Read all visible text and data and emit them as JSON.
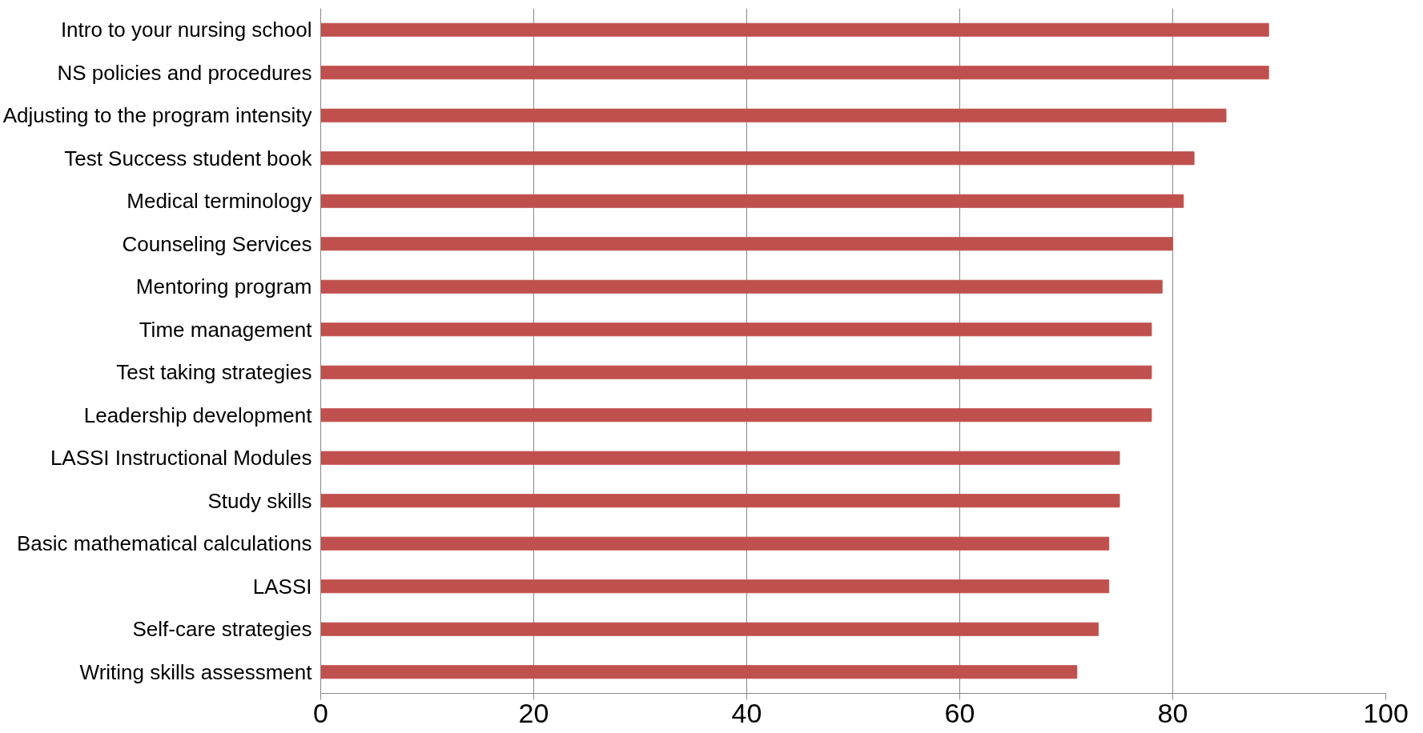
{
  "chart_data": {
    "type": "bar",
    "orientation": "horizontal",
    "categories": [
      "Intro to your nursing school",
      "NS policies and procedures",
      "Adjusting to the program intensity",
      "Test Success student book",
      "Medical terminology",
      "Counseling Services",
      "Mentoring program",
      "Time management",
      "Test taking strategies",
      "Leadership development",
      "LASSI Instructional Modules",
      "Study skills",
      "Basic mathematical calculations",
      "LASSI",
      "Self-care strategies",
      "Writing skills assessment"
    ],
    "values": [
      89,
      89,
      85,
      82,
      81,
      80,
      79,
      78,
      78,
      78,
      75,
      75,
      74,
      74,
      73,
      71
    ],
    "color": "#c0504d",
    "xlim": [
      0,
      100
    ],
    "xticks": [
      0,
      20,
      40,
      60,
      80,
      100
    ],
    "grid": "x"
  }
}
